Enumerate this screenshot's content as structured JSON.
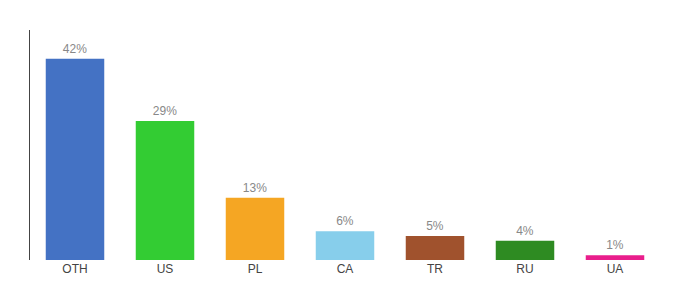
{
  "chart_data": {
    "type": "bar",
    "categories": [
      "OTH",
      "US",
      "PL",
      "CA",
      "TR",
      "RU",
      "UA"
    ],
    "values": [
      42,
      29,
      13,
      6,
      5,
      4,
      1
    ],
    "value_labels": [
      "42%",
      "29%",
      "13%",
      "6%",
      "5%",
      "4%",
      "1%"
    ],
    "colors": [
      "#4472c4",
      "#33cc33",
      "#f5a623",
      "#87ceeb",
      "#a0522d",
      "#2e8b22",
      "#e91e8c"
    ],
    "ylim": [
      0,
      48
    ],
    "grid": false,
    "data_labels": true,
    "tick_labels": "x"
  }
}
